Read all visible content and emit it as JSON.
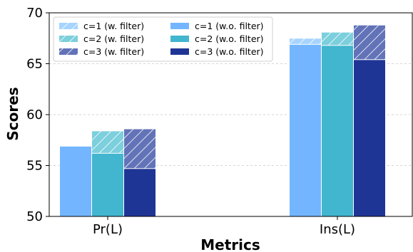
{
  "chart_data": {
    "type": "bar",
    "xlabel": "Metrics",
    "ylabel": "Scores",
    "ylim": [
      50,
      70
    ],
    "yticks": [
      50,
      55,
      60,
      65,
      70
    ],
    "grid": "horizontal dashed",
    "legend_placement": "top-left",
    "categories": [
      "Pr(L)",
      "Ins(L)"
    ],
    "series": [
      {
        "name": "c=1 (w. filter)",
        "values": [
          56.9,
          67.5
        ],
        "color": "#a6d4ff",
        "hatched": true
      },
      {
        "name": "c=2 (w. filter)",
        "values": [
          58.4,
          68.1
        ],
        "color": "#7ccfdc",
        "hatched": true
      },
      {
        "name": "c=3 (w. filter)",
        "values": [
          58.6,
          68.8
        ],
        "color": "#6273b8",
        "hatched": true
      },
      {
        "name": "c=1 (w.o. filter)",
        "values": [
          56.9,
          66.9
        ],
        "color": "#73b6ff",
        "hatched": false
      },
      {
        "name": "c=2 (w.o. filter)",
        "values": [
          56.2,
          66.8
        ],
        "color": "#42b5cf",
        "hatched": false
      },
      {
        "name": "c=3 (w.o. filter)",
        "values": [
          54.7,
          65.4
        ],
        "color": "#1f3595",
        "hatched": false
      }
    ]
  }
}
